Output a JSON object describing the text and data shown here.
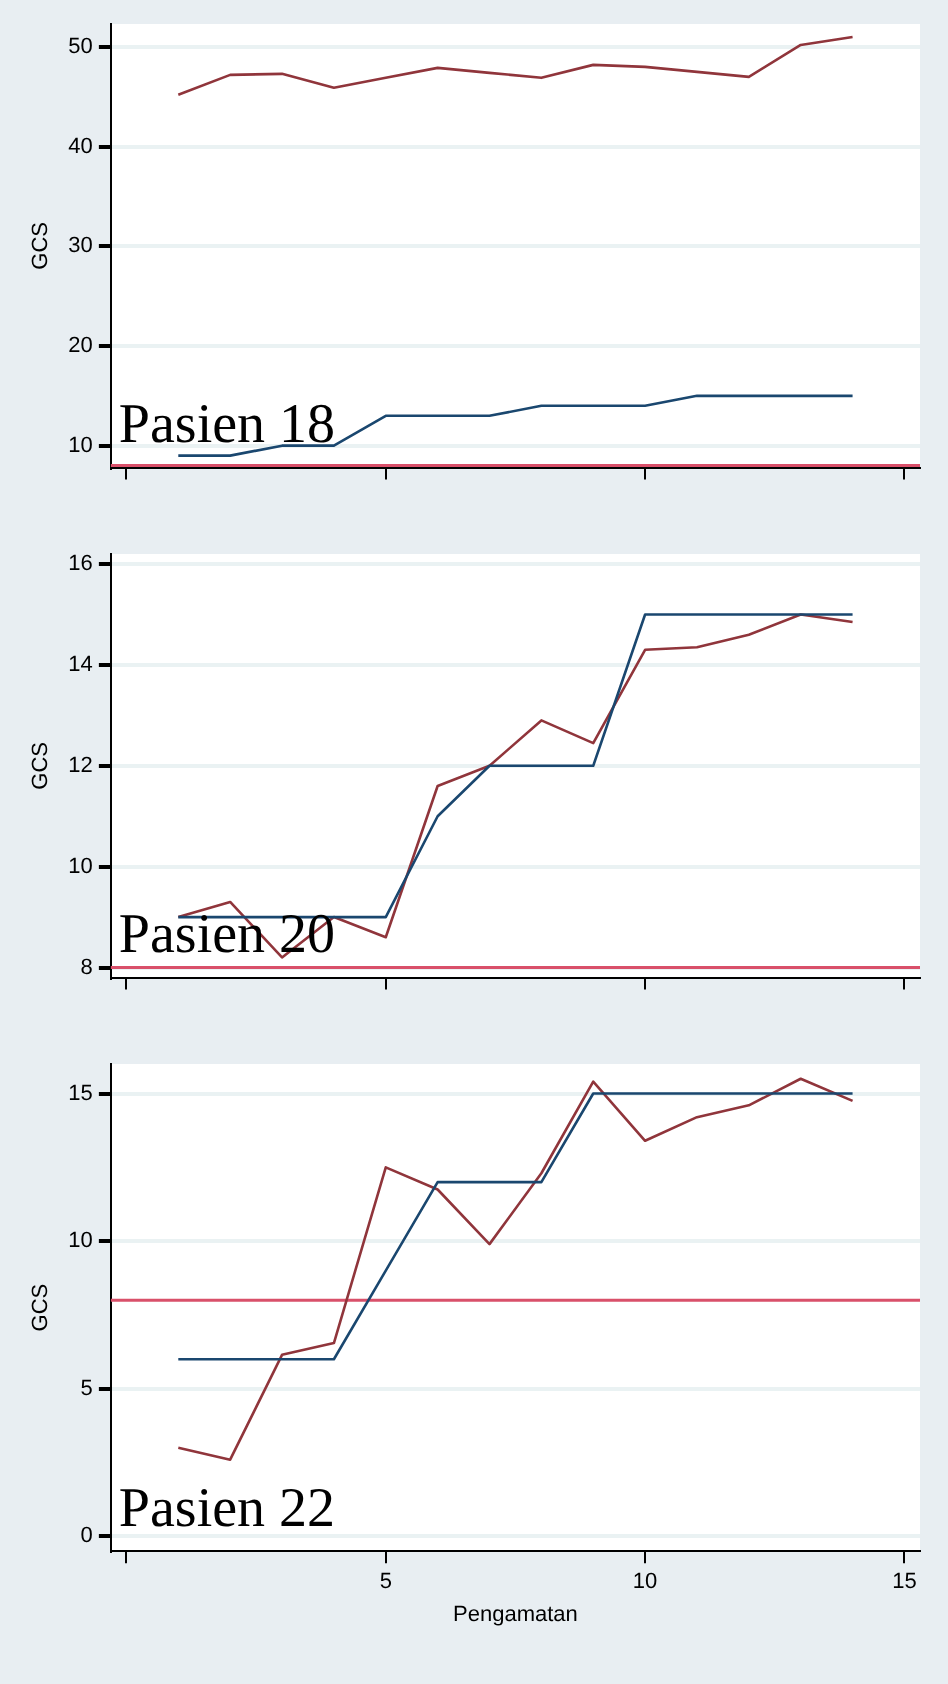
{
  "chart_data": [
    {
      "type": "line",
      "ylabel": "GCS",
      "annotations": [
        "Pasien 18"
      ],
      "x": [
        1,
        2,
        3,
        4,
        5,
        6,
        7,
        8,
        9,
        10,
        11,
        12,
        13,
        14
      ],
      "series": [
        {
          "color": "#1a476f",
          "values": [
            9,
            9,
            10,
            10,
            13,
            13,
            13,
            14,
            14,
            14,
            15,
            15,
            15,
            15
          ]
        },
        {
          "color": "#90353b",
          "values": [
            45.2,
            47.2,
            47.3,
            45.9,
            46.9,
            47.9,
            47.4,
            46.9,
            48.2,
            48.0,
            47.5,
            47.0,
            50.2,
            51.0
          ]
        }
      ],
      "xlim": [
        -0.3,
        15.3
      ],
      "xticks": [
        {
          "value": 0,
          "label": null
        },
        {
          "value": 5,
          "label": null
        },
        {
          "value": 10,
          "label": null
        },
        {
          "value": 15,
          "label": null
        }
      ],
      "ylim": [
        7.8,
        52.3
      ],
      "yticks": [
        10,
        20,
        30,
        40,
        50
      ],
      "grid": "y",
      "tick_labels": "y",
      "ref_lines": [
        {
          "axis": "y",
          "value": 8,
          "color": "#d9506a"
        }
      ]
    },
    {
      "type": "line",
      "ylabel": "GCS",
      "annotations": [
        "Pasien 20"
      ],
      "x": [
        1,
        2,
        3,
        4,
        5,
        6,
        7,
        8,
        9,
        10,
        11,
        12,
        13,
        14
      ],
      "series": [
        {
          "color": "#1a476f",
          "values": [
            9,
            9,
            9,
            9,
            9,
            11,
            12,
            12,
            12,
            15,
            15,
            15,
            15,
            15
          ]
        },
        {
          "color": "#90353b",
          "values": [
            9.0,
            9.3,
            8.2,
            9.0,
            8.6,
            11.6,
            12.0,
            12.9,
            12.45,
            14.3,
            14.35,
            14.6,
            15.0,
            14.85
          ]
        }
      ],
      "xlim": [
        -0.3,
        15.3
      ],
      "xticks": [
        {
          "value": 0,
          "label": null
        },
        {
          "value": 5,
          "label": null
        },
        {
          "value": 10,
          "label": null
        },
        {
          "value": 15,
          "label": null
        }
      ],
      "ylim": [
        7.8,
        16.2
      ],
      "yticks": [
        8,
        10,
        12,
        14,
        16
      ],
      "grid": "y",
      "tick_labels": "y",
      "ref_lines": [
        {
          "axis": "y",
          "value": 8,
          "color": "#d9506a"
        }
      ]
    },
    {
      "type": "line",
      "ylabel": "GCS",
      "xlabel": "Pengamatan",
      "annotations": [
        "Pasien 22"
      ],
      "x": [
        1,
        2,
        3,
        4,
        5,
        6,
        7,
        8,
        9,
        10,
        11,
        12,
        13,
        14
      ],
      "series": [
        {
          "color": "#1a476f",
          "values": [
            6,
            6,
            6,
            6,
            9,
            12,
            12,
            12,
            15,
            15,
            15,
            15,
            15,
            15
          ]
        },
        {
          "color": "#90353b",
          "values": [
            3.0,
            2.6,
            6.15,
            6.55,
            12.5,
            11.75,
            9.9,
            12.3,
            15.4,
            13.4,
            14.2,
            14.6,
            15.5,
            14.75
          ]
        }
      ],
      "xlim": [
        -0.3,
        15.3
      ],
      "xticks": [
        {
          "value": 0,
          "label": null
        },
        5,
        10,
        15
      ],
      "ylim": [
        -0.5,
        16
      ],
      "yticks": [
        0,
        5,
        10,
        15
      ],
      "grid": "y",
      "ref_lines": [
        {
          "axis": "y",
          "value": 8,
          "color": "#d9506a"
        }
      ]
    }
  ]
}
